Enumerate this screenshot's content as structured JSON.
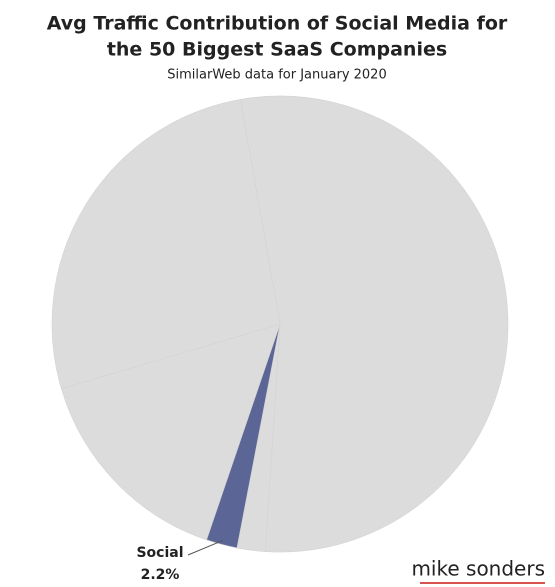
{
  "chart_data": {
    "type": "pie",
    "title": "Avg Traffic Contribution of Social Media for",
    "title_line2": "the 50 Biggest SaaS Companies",
    "subtitle": "SimilarWeb data for January 2020",
    "categories": [
      null,
      null,
      "Social",
      null,
      null
    ],
    "values": [
      53.8,
      2.0,
      2.2,
      15.2,
      26.8
    ],
    "value_labels": [
      null,
      null,
      "2.2%",
      null,
      null
    ],
    "colors": [
      "#dcdcdc",
      "#dcdcdc",
      "#5b6596",
      "#dcdcdc",
      "#dcdcdc"
    ],
    "start_angle": -10,
    "credit": "mike sonders"
  }
}
